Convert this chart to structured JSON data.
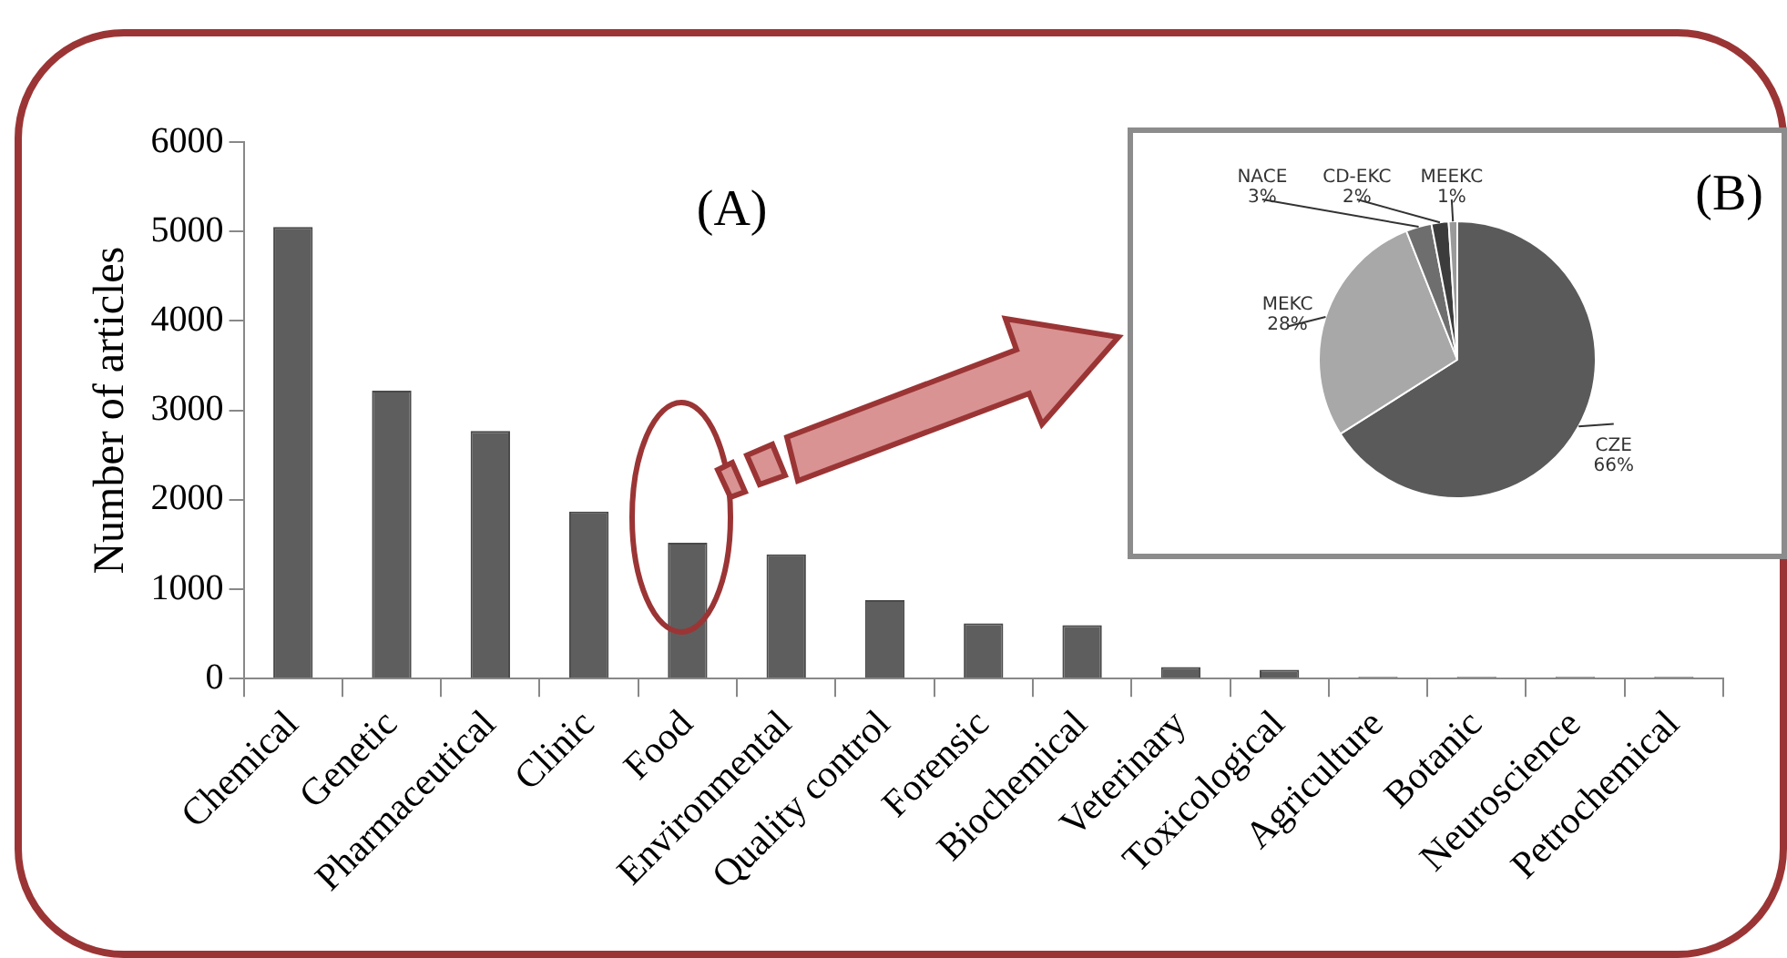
{
  "chart_data": [
    {
      "type": "bar",
      "title": "(A)",
      "ylabel": "Number of articles",
      "categories": [
        "Chemical",
        "Genetic",
        "Pharmaceutical",
        "Clinic",
        "Food",
        "Environmental",
        "Quality control",
        "Forensic",
        "Biochemical",
        "Veterinary",
        "Toxicological",
        "Agriculture",
        "Botanic",
        "Neuroscience",
        "Petrochemical"
      ],
      "values": [
        5050,
        3220,
        2770,
        1870,
        1520,
        1390,
        880,
        620,
        600,
        130,
        100,
        20,
        20,
        20,
        20
      ],
      "color": "#5e5e5e",
      "ylim": [
        0,
        6000
      ],
      "yticks": [
        0,
        1000,
        2000,
        3000,
        4000,
        5000,
        6000
      ],
      "grid": false,
      "legend": false
    },
    {
      "type": "pie",
      "title": "(B)",
      "categories": [
        "CZE",
        "MEKC",
        "NACE",
        "CD-EKC",
        "MEEKC"
      ],
      "values": [
        66,
        28,
        3,
        2,
        1
      ],
      "colors": [
        "#5a5a5a",
        "#a8a8a8",
        "#6e6e6e",
        "#3c3c3c",
        "#9a9a9a"
      ],
      "value_labels": [
        "66%",
        "28%",
        "3%",
        "2%",
        "1%"
      ],
      "legend": false
    }
  ]
}
